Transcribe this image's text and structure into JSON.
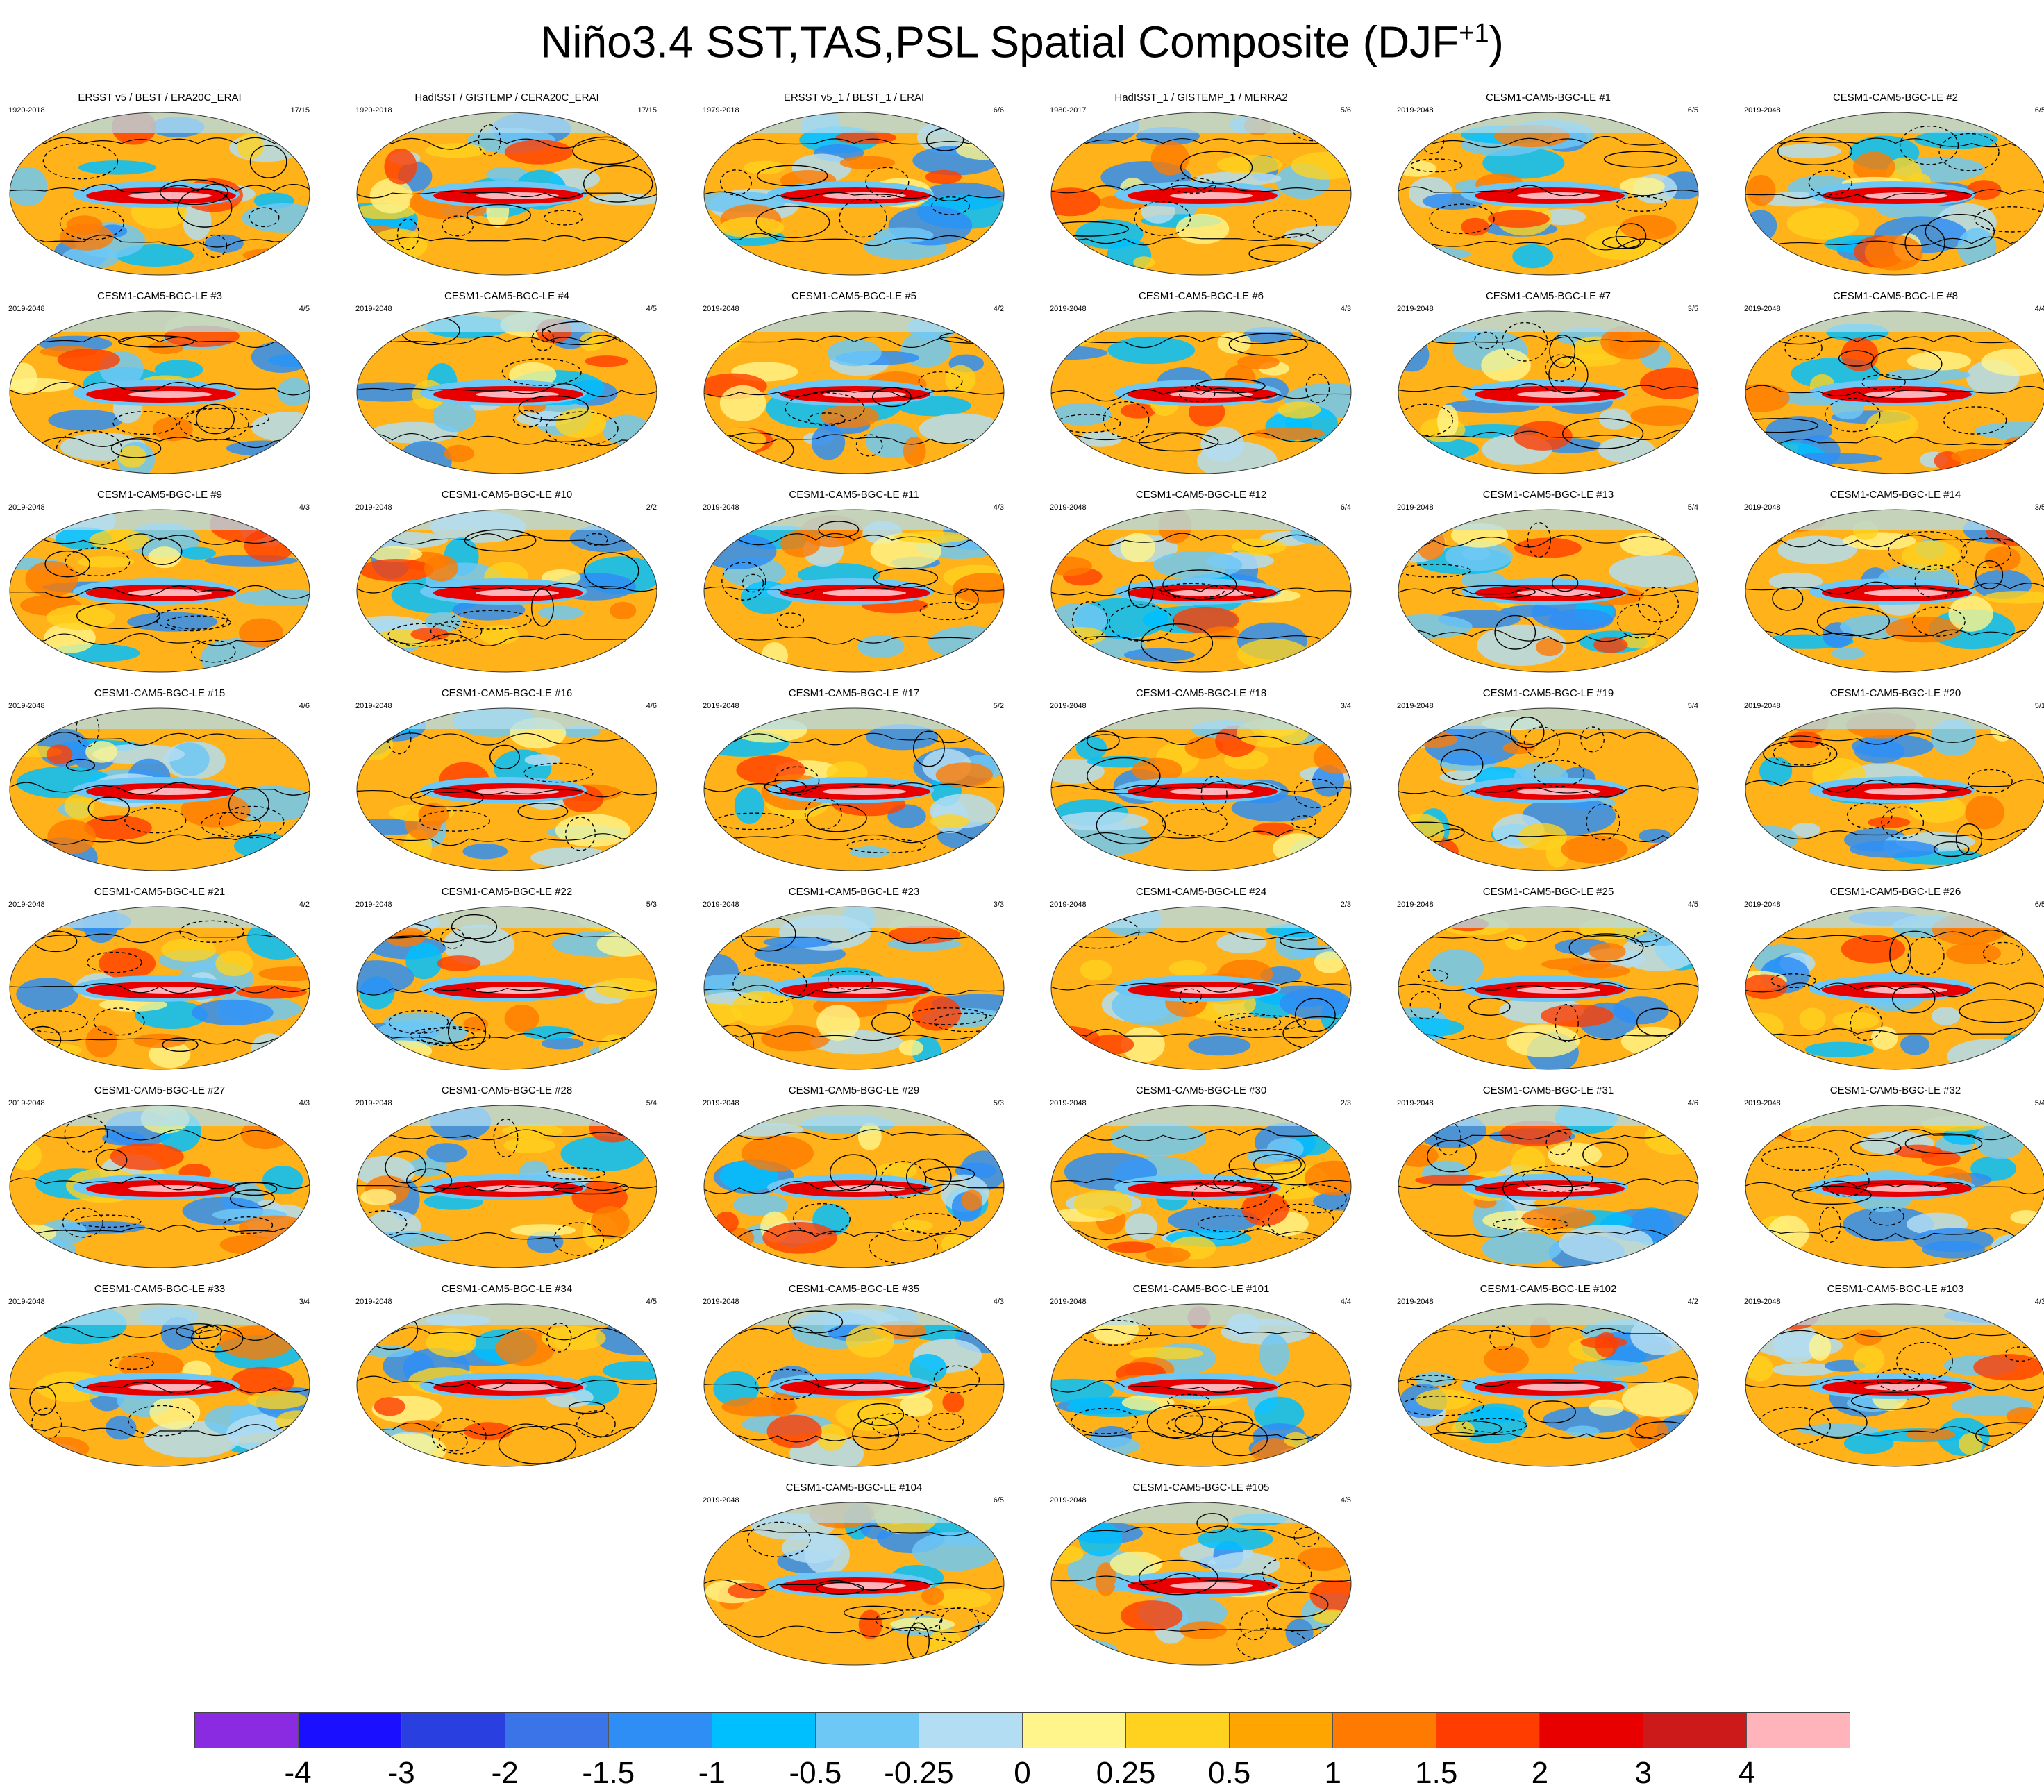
{
  "title": {
    "main": "Niño3.4 SST,TAS,PSL Spatial Composite (DJF",
    "sup": "+1",
    "close": ")"
  },
  "panels": [
    {
      "title": "ERSST v5 / BEST / ERA20C_ERAI",
      "years": "1920-2018",
      "count": "17/15"
    },
    {
      "title": "HadISST / GISTEMP / CERA20C_ERAI",
      "years": "1920-2018",
      "count": "17/15"
    },
    {
      "title": "ERSST v5_1 / BEST_1 / ERAI",
      "years": "1979-2018",
      "count": "6/6"
    },
    {
      "title": "HadISST_1 / GISTEMP_1 / MERRA2",
      "years": "1980-2017",
      "count": "5/6"
    },
    {
      "title": "CESM1-CAM5-BGC-LE #1",
      "years": "2019-2048",
      "count": "6/5"
    },
    {
      "title": "CESM1-CAM5-BGC-LE #2",
      "years": "2019-2048",
      "count": "6/5"
    },
    {
      "title": "CESM1-CAM5-BGC-LE #3",
      "years": "2019-2048",
      "count": "4/5"
    },
    {
      "title": "CESM1-CAM5-BGC-LE #4",
      "years": "2019-2048",
      "count": "4/5"
    },
    {
      "title": "CESM1-CAM5-BGC-LE #5",
      "years": "2019-2048",
      "count": "4/2"
    },
    {
      "title": "CESM1-CAM5-BGC-LE #6",
      "years": "2019-2048",
      "count": "4/3"
    },
    {
      "title": "CESM1-CAM5-BGC-LE #7",
      "years": "2019-2048",
      "count": "3/5"
    },
    {
      "title": "CESM1-CAM5-BGC-LE #8",
      "years": "2019-2048",
      "count": "4/4"
    },
    {
      "title": "CESM1-CAM5-BGC-LE #9",
      "years": "2019-2048",
      "count": "4/3"
    },
    {
      "title": "CESM1-CAM5-BGC-LE #10",
      "years": "2019-2048",
      "count": "2/2"
    },
    {
      "title": "CESM1-CAM5-BGC-LE #11",
      "years": "2019-2048",
      "count": "4/3"
    },
    {
      "title": "CESM1-CAM5-BGC-LE #12",
      "years": "2019-2048",
      "count": "6/4"
    },
    {
      "title": "CESM1-CAM5-BGC-LE #13",
      "years": "2019-2048",
      "count": "5/4"
    },
    {
      "title": "CESM1-CAM5-BGC-LE #14",
      "years": "2019-2048",
      "count": "3/5"
    },
    {
      "title": "CESM1-CAM5-BGC-LE #15",
      "years": "2019-2048",
      "count": "4/6"
    },
    {
      "title": "CESM1-CAM5-BGC-LE #16",
      "years": "2019-2048",
      "count": "4/6"
    },
    {
      "title": "CESM1-CAM5-BGC-LE #17",
      "years": "2019-2048",
      "count": "5/2"
    },
    {
      "title": "CESM1-CAM5-BGC-LE #18",
      "years": "2019-2048",
      "count": "3/4"
    },
    {
      "title": "CESM1-CAM5-BGC-LE #19",
      "years": "2019-2048",
      "count": "5/4"
    },
    {
      "title": "CESM1-CAM5-BGC-LE #20",
      "years": "2019-2048",
      "count": "5/1"
    },
    {
      "title": "CESM1-CAM5-BGC-LE #21",
      "years": "2019-2048",
      "count": "4/2"
    },
    {
      "title": "CESM1-CAM5-BGC-LE #22",
      "years": "2019-2048",
      "count": "5/3"
    },
    {
      "title": "CESM1-CAM5-BGC-LE #23",
      "years": "2019-2048",
      "count": "3/3"
    },
    {
      "title": "CESM1-CAM5-BGC-LE #24",
      "years": "2019-2048",
      "count": "2/3"
    },
    {
      "title": "CESM1-CAM5-BGC-LE #25",
      "years": "2019-2048",
      "count": "4/5"
    },
    {
      "title": "CESM1-CAM5-BGC-LE #26",
      "years": "2019-2048",
      "count": "6/5"
    },
    {
      "title": "CESM1-CAM5-BGC-LE #27",
      "years": "2019-2048",
      "count": "4/3"
    },
    {
      "title": "CESM1-CAM5-BGC-LE #28",
      "years": "2019-2048",
      "count": "5/4"
    },
    {
      "title": "CESM1-CAM5-BGC-LE #29",
      "years": "2019-2048",
      "count": "5/3"
    },
    {
      "title": "CESM1-CAM5-BGC-LE #30",
      "years": "2019-2048",
      "count": "2/3"
    },
    {
      "title": "CESM1-CAM5-BGC-LE #31",
      "years": "2019-2048",
      "count": "4/6"
    },
    {
      "title": "CESM1-CAM5-BGC-LE #32",
      "years": "2019-2048",
      "count": "5/4"
    },
    {
      "title": "CESM1-CAM5-BGC-LE #33",
      "years": "2019-2048",
      "count": "3/4"
    },
    {
      "title": "CESM1-CAM5-BGC-LE #34",
      "years": "2019-2048",
      "count": "4/5"
    },
    {
      "title": "CESM1-CAM5-BGC-LE #35",
      "years": "2019-2048",
      "count": "4/3"
    },
    {
      "title": "CESM1-CAM5-BGC-LE #101",
      "years": "2019-2048",
      "count": "4/4"
    },
    {
      "title": "CESM1-CAM5-BGC-LE #102",
      "years": "2019-2048",
      "count": "4/2"
    },
    {
      "title": "CESM1-CAM5-BGC-LE #103",
      "years": "2019-2048",
      "count": "4/3"
    },
    {
      "title": "CESM1-CAM5-BGC-LE #104",
      "years": "2019-2048",
      "count": "6/5"
    },
    {
      "title": "CESM1-CAM5-BGC-LE #105",
      "years": "2019-2048",
      "count": "4/5"
    }
  ],
  "colorbar": {
    "colors": [
      "#8a2be2",
      "#1a0fff",
      "#2a3fe0",
      "#3a74e8",
      "#2f8ef5",
      "#00bfff",
      "#6ec8f5",
      "#b3ddf2",
      "#fff58a",
      "#ffd21f",
      "#ffa500",
      "#ff7a00",
      "#ff3d00",
      "#e80000",
      "#cc1a1a",
      "#ffb3ba"
    ],
    "labels": [
      "-4",
      "-3",
      "-2",
      "-1.5",
      "-1",
      "-0.5",
      "-0.25",
      "0",
      "0.25",
      "0.5",
      "1",
      "1.5",
      "2",
      "3",
      "4"
    ]
  }
}
